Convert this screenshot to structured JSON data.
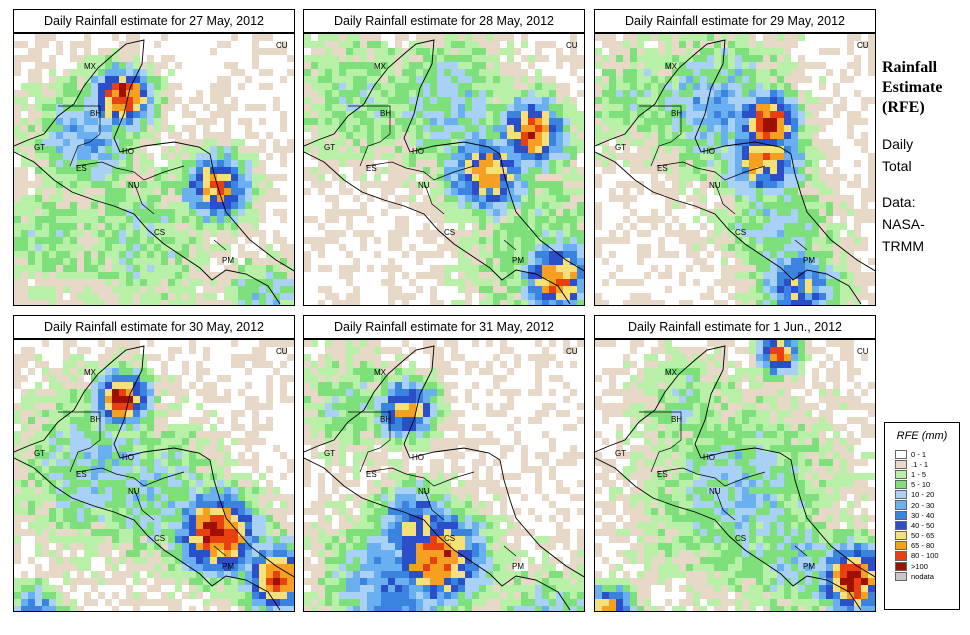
{
  "panels": [
    {
      "title": "Daily Rainfall estimate for  27 May, 2012"
    },
    {
      "title": "Daily Rainfall estimate for  28 May, 2012"
    },
    {
      "title": "Daily Rainfall estimate for  29 May, 2012"
    },
    {
      "title": "Daily Rainfall estimate for  30 May, 2012"
    },
    {
      "title": "Daily Rainfall estimate for  31 May, 2012"
    },
    {
      "title": "Daily Rainfall estimate for  1 Jun., 2012"
    }
  ],
  "map_labels": [
    "MX",
    "BH",
    "GT",
    "HO",
    "ES",
    "NU",
    "CS",
    "PM",
    "CU"
  ],
  "side": {
    "heading": [
      "Rainfall",
      "Estimate",
      "(RFE)"
    ],
    "desc": [
      "Daily",
      "Total"
    ],
    "source": [
      "Data:",
      "NASA-",
      "TRMM"
    ]
  },
  "legend": {
    "title": "RFE (mm)",
    "classes": [
      {
        "label": "0 - 1",
        "color": "#ffffff"
      },
      {
        "label": ".1 - 1",
        "color": "#e8d8c8"
      },
      {
        "label": "1 - 5",
        "color": "#b8f0a8"
      },
      {
        "label": "5 - 10",
        "color": "#7ee07a"
      },
      {
        "label": "10 - 20",
        "color": "#a9d0f5"
      },
      {
        "label": "20 - 30",
        "color": "#6aaff0"
      },
      {
        "label": "30 - 40",
        "color": "#3a84e0"
      },
      {
        "label": "40 - 50",
        "color": "#2a4fc8"
      },
      {
        "label": "50 - 65",
        "color": "#f5e07a"
      },
      {
        "label": "65 - 80",
        "color": "#f5a020"
      },
      {
        "label": "80 - 100",
        "color": "#e84010"
      },
      {
        "label": ">100",
        "color": "#a01000"
      },
      {
        "label": "nodata",
        "color": "#c8c8c8"
      }
    ]
  }
}
